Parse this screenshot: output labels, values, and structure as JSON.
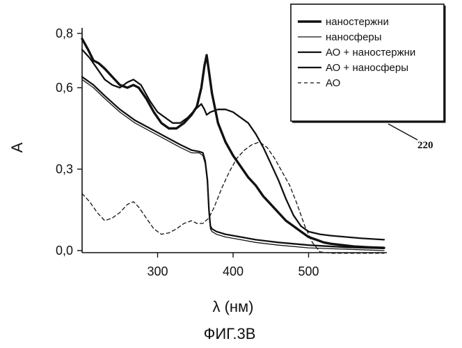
{
  "chart_data": {
    "type": "line",
    "xlabel": "λ (нм)",
    "ylabel": "A",
    "caption": "ФИГ.3В",
    "reference_numeral": "220",
    "xlim": [
      200,
      600
    ],
    "ylim": [
      0.0,
      0.8
    ],
    "x_ticks": [
      300,
      400,
      500
    ],
    "x_tick_labels": [
      "300",
      "400",
      "500"
    ],
    "y_ticks": [
      0.0,
      0.3,
      0.6,
      0.8
    ],
    "y_tick_labels": [
      "0,0",
      "0,3",
      "0,6",
      "0,8"
    ],
    "grid": false,
    "legend_position": "top-right",
    "series": [
      {
        "name": "наностержни",
        "style": "solid",
        "weight": "bold",
        "x": [
          200,
          208,
          215,
          222,
          230,
          240,
          250,
          260,
          268,
          275,
          285,
          295,
          305,
          315,
          325,
          335,
          345,
          352,
          358,
          362,
          365,
          368,
          372,
          380,
          390,
          400,
          410,
          420,
          430,
          440,
          450,
          460,
          470,
          480,
          490,
          500,
          510,
          520,
          530,
          545,
          560,
          580,
          600
        ],
        "y": [
          0.78,
          0.74,
          0.7,
          0.69,
          0.67,
          0.64,
          0.61,
          0.6,
          0.61,
          0.6,
          0.56,
          0.51,
          0.47,
          0.45,
          0.45,
          0.47,
          0.5,
          0.53,
          0.6,
          0.68,
          0.72,
          0.66,
          0.58,
          0.47,
          0.4,
          0.35,
          0.31,
          0.27,
          0.24,
          0.2,
          0.17,
          0.14,
          0.11,
          0.09,
          0.07,
          0.05,
          0.04,
          0.03,
          0.025,
          0.02,
          0.015,
          0.012,
          0.01
        ]
      },
      {
        "name": "наносферы",
        "style": "solid",
        "weight": "thin",
        "x": [
          200,
          215,
          230,
          250,
          270,
          290,
          310,
          330,
          345,
          355,
          360,
          363,
          366,
          368,
          370,
          372,
          378,
          390,
          410,
          430,
          460,
          500,
          550,
          600
        ],
        "y": [
          0.63,
          0.6,
          0.56,
          0.51,
          0.47,
          0.44,
          0.41,
          0.38,
          0.36,
          0.36,
          0.35,
          0.32,
          0.25,
          0.14,
          0.08,
          0.07,
          0.06,
          0.05,
          0.04,
          0.03,
          0.02,
          0.01,
          0.005,
          0.0
        ]
      },
      {
        "name": "АО + наностержни",
        "style": "solid",
        "weight": "medium",
        "x": [
          200,
          210,
          220,
          230,
          240,
          250,
          260,
          268,
          278,
          290,
          300,
          310,
          320,
          330,
          340,
          350,
          358,
          362,
          365,
          370,
          380,
          390,
          400,
          410,
          420,
          430,
          440,
          450,
          460,
          470,
          480,
          490,
          500,
          515,
          530,
          550,
          570,
          600
        ],
        "y": [
          0.74,
          0.71,
          0.67,
          0.63,
          0.61,
          0.6,
          0.62,
          0.63,
          0.61,
          0.55,
          0.51,
          0.49,
          0.47,
          0.47,
          0.49,
          0.52,
          0.54,
          0.52,
          0.5,
          0.51,
          0.52,
          0.52,
          0.51,
          0.49,
          0.47,
          0.43,
          0.38,
          0.32,
          0.26,
          0.19,
          0.13,
          0.09,
          0.07,
          0.06,
          0.055,
          0.05,
          0.045,
          0.04
        ]
      },
      {
        "name": "АО + наносферы",
        "style": "solid",
        "weight": "medium",
        "x": [
          200,
          215,
          230,
          250,
          270,
          290,
          310,
          330,
          345,
          355,
          360,
          363,
          366,
          368,
          370,
          372,
          378,
          390,
          410,
          430,
          460,
          500,
          550,
          600
        ],
        "y": [
          0.64,
          0.61,
          0.57,
          0.52,
          0.48,
          0.45,
          0.42,
          0.39,
          0.37,
          0.365,
          0.36,
          0.33,
          0.26,
          0.15,
          0.09,
          0.08,
          0.07,
          0.06,
          0.05,
          0.04,
          0.03,
          0.02,
          0.012,
          0.008
        ]
      },
      {
        "name": "АО",
        "style": "dashed",
        "weight": "thin",
        "x": [
          200,
          210,
          220,
          230,
          240,
          250,
          260,
          268,
          275,
          285,
          295,
          305,
          315,
          325,
          335,
          345,
          352,
          360,
          368,
          375,
          385,
          395,
          405,
          415,
          425,
          435,
          445,
          455,
          465,
          475,
          485,
          495,
          505,
          515,
          530,
          550,
          580,
          600
        ],
        "y": [
          0.21,
          0.18,
          0.14,
          0.11,
          0.12,
          0.14,
          0.17,
          0.18,
          0.16,
          0.12,
          0.08,
          0.06,
          0.065,
          0.08,
          0.1,
          0.11,
          0.1,
          0.1,
          0.12,
          0.16,
          0.23,
          0.29,
          0.34,
          0.37,
          0.39,
          0.4,
          0.38,
          0.34,
          0.29,
          0.24,
          0.17,
          0.09,
          0.03,
          -0.005,
          -0.01,
          -0.01,
          -0.01,
          -0.01
        ]
      }
    ]
  }
}
